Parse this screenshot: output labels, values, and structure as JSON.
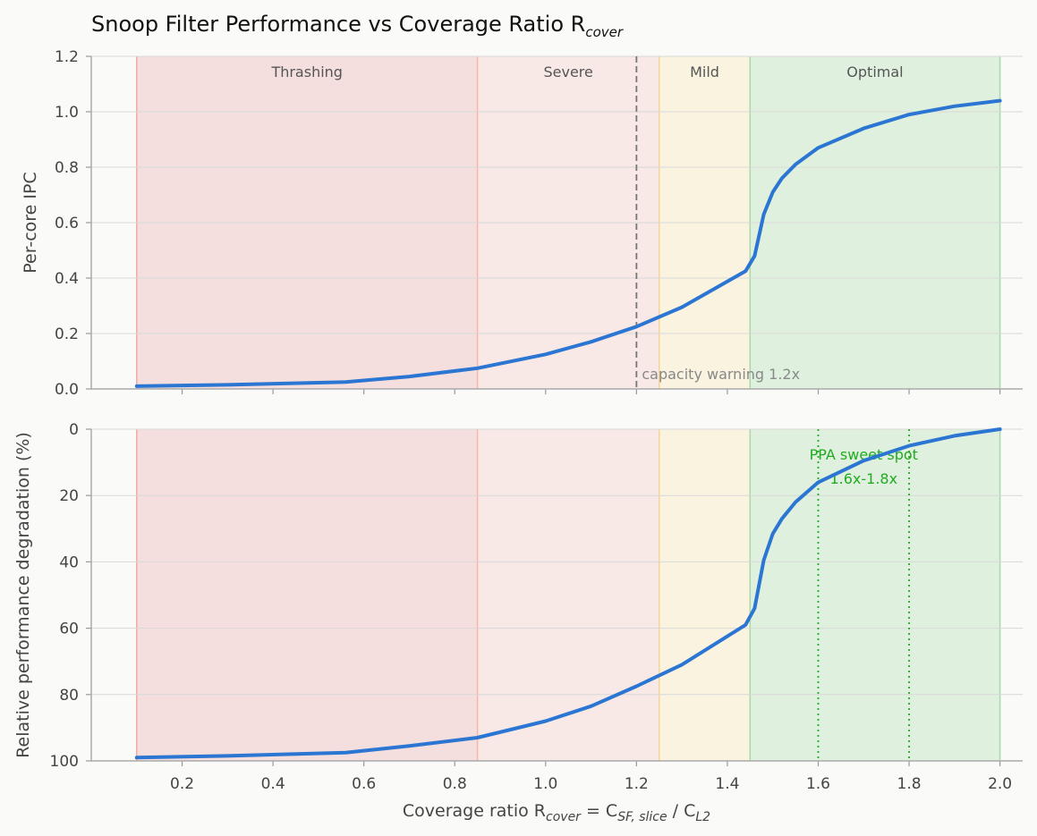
{
  "chart_data": [
    {
      "type": "line",
      "title": "Snoop Filter Performance vs Coverage Ratio R",
      "title_sub": "cover",
      "xlabel": "",
      "ylabel": "Per-core IPC",
      "xlim": [
        0.0,
        2.05
      ],
      "ylim": [
        0.0,
        1.2
      ],
      "yticks": [
        "0.0",
        "0.2",
        "0.4",
        "0.6",
        "0.8",
        "1.0",
        "1.2"
      ],
      "grid": true,
      "regions": [
        {
          "name": "Thrashing",
          "from": 0.1,
          "to": 0.85,
          "color": "#f0c4c4",
          "edge": "#f2a8a8"
        },
        {
          "name": "Severe",
          "from": 0.85,
          "to": 1.25,
          "color": "#f7d8d4",
          "edge": "#f0b8a8"
        },
        {
          "name": "Mild",
          "from": 1.25,
          "to": 1.45,
          "color": "#faebc8",
          "edge": "#f5d49a"
        },
        {
          "name": "Optimal",
          "from": 1.45,
          "to": 2.0,
          "color": "#c4e8c4",
          "edge": "#a8d8a8"
        }
      ],
      "vline": {
        "x": 1.2,
        "label": "capacity warning 1.2x",
        "color": "#777777"
      },
      "series": [
        {
          "color": "#2b76d2",
          "x": [
            0.1,
            0.3,
            0.56,
            0.7,
            0.85,
            1.0,
            1.1,
            1.2,
            1.3,
            1.44,
            1.46,
            1.48,
            1.5,
            1.52,
            1.55,
            1.6,
            1.7,
            1.8,
            1.9,
            2.0
          ],
          "y": [
            0.01,
            0.015,
            0.025,
            0.045,
            0.075,
            0.125,
            0.17,
            0.225,
            0.295,
            0.425,
            0.48,
            0.63,
            0.71,
            0.76,
            0.81,
            0.87,
            0.94,
            0.99,
            1.02,
            1.04
          ]
        }
      ]
    },
    {
      "type": "line",
      "title": "",
      "xlabel": "Coverage ratio R",
      "xlabel_parts": {
        "r_sub": "cover",
        "eq": " = C",
        "c_sub": "SF, slice",
        "slash": " / C",
        "l_sub": "L2"
      },
      "ylabel": "Relative performance degradation (%)",
      "xlim": [
        0.0,
        2.05
      ],
      "ylim": [
        100,
        0
      ],
      "yticks": [
        "0",
        "20",
        "40",
        "60",
        "80",
        "100"
      ],
      "xticks": [
        "0.2",
        "0.4",
        "0.6",
        "0.8",
        "1.0",
        "1.2",
        "1.4",
        "1.6",
        "1.8",
        "2.0"
      ],
      "grid": true,
      "regions": [
        {
          "name": "Thrashing",
          "from": 0.1,
          "to": 0.85,
          "color": "#f0c4c4",
          "edge": "#f2a8a8"
        },
        {
          "name": "Severe",
          "from": 0.85,
          "to": 1.25,
          "color": "#f7d8d4",
          "edge": "#f0b8a8"
        },
        {
          "name": "Mild",
          "from": 1.25,
          "to": 1.45,
          "color": "#faebc8",
          "edge": "#f5d49a"
        },
        {
          "name": "Optimal",
          "from": 1.45,
          "to": 2.0,
          "color": "#c4e8c4",
          "edge": "#a8d8a8"
        }
      ],
      "vlines": [
        1.6,
        1.8
      ],
      "annotation": {
        "line1": "PPA sweet spot",
        "line2": "1.6x-1.8x",
        "x": 1.7,
        "y1": 7.5,
        "y2": 13.5,
        "color": "#22aa22"
      },
      "series": [
        {
          "color": "#2b76d2",
          "x": [
            0.1,
            0.3,
            0.56,
            0.7,
            0.85,
            1.0,
            1.1,
            1.2,
            1.3,
            1.44,
            1.46,
            1.48,
            1.5,
            1.52,
            1.55,
            1.6,
            1.7,
            1.8,
            1.9,
            2.0
          ],
          "y": [
            99,
            98.5,
            97.5,
            95.5,
            93,
            88,
            83.5,
            77.5,
            71,
            59,
            54,
            39.5,
            31.5,
            27,
            22,
            16,
            9.5,
            5,
            2,
            0
          ]
        }
      ]
    }
  ]
}
